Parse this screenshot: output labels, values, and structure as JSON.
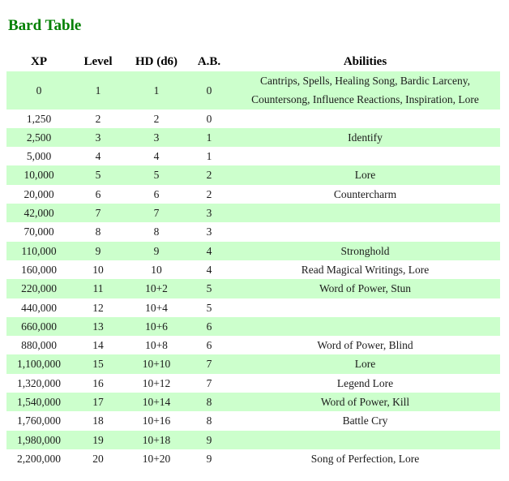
{
  "page": {
    "title": "Bard Table"
  },
  "colors": {
    "title_green": "#008000",
    "stripe_green": "#ccffcc",
    "text": "#1b1b1b"
  },
  "table": {
    "columns": [
      "XP",
      "Level",
      "HD (d6)",
      "A.B.",
      "Abilities"
    ],
    "rows": [
      {
        "xp": "0",
        "level": "1",
        "hd": "1",
        "ab": "0",
        "abilities": "Cantrips, Spells, Healing Song, Bardic Larceny, Countersong, Influence Reactions, Inspiration, Lore"
      },
      {
        "xp": "1,250",
        "level": "2",
        "hd": "2",
        "ab": "0",
        "abilities": ""
      },
      {
        "xp": "2,500",
        "level": "3",
        "hd": "3",
        "ab": "1",
        "abilities": "Identify"
      },
      {
        "xp": "5,000",
        "level": "4",
        "hd": "4",
        "ab": "1",
        "abilities": ""
      },
      {
        "xp": "10,000",
        "level": "5",
        "hd": "5",
        "ab": "2",
        "abilities": "Lore"
      },
      {
        "xp": "20,000",
        "level": "6",
        "hd": "6",
        "ab": "2",
        "abilities": "Countercharm"
      },
      {
        "xp": "42,000",
        "level": "7",
        "hd": "7",
        "ab": "3",
        "abilities": ""
      },
      {
        "xp": "70,000",
        "level": "8",
        "hd": "8",
        "ab": "3",
        "abilities": ""
      },
      {
        "xp": "110,000",
        "level": "9",
        "hd": "9",
        "ab": "4",
        "abilities": "Stronghold"
      },
      {
        "xp": "160,000",
        "level": "10",
        "hd": "10",
        "ab": "4",
        "abilities": "Read Magical Writings, Lore"
      },
      {
        "xp": "220,000",
        "level": "11",
        "hd": "10+2",
        "ab": "5",
        "abilities": "Word of Power, Stun"
      },
      {
        "xp": "440,000",
        "level": "12",
        "hd": "10+4",
        "ab": "5",
        "abilities": ""
      },
      {
        "xp": "660,000",
        "level": "13",
        "hd": "10+6",
        "ab": "6",
        "abilities": ""
      },
      {
        "xp": "880,000",
        "level": "14",
        "hd": "10+8",
        "ab": "6",
        "abilities": "Word of Power, Blind"
      },
      {
        "xp": "1,100,000",
        "level": "15",
        "hd": "10+10",
        "ab": "7",
        "abilities": "Lore"
      },
      {
        "xp": "1,320,000",
        "level": "16",
        "hd": "10+12",
        "ab": "7",
        "abilities": "Legend Lore"
      },
      {
        "xp": "1,540,000",
        "level": "17",
        "hd": "10+14",
        "ab": "8",
        "abilities": "Word of Power, Kill"
      },
      {
        "xp": "1,760,000",
        "level": "18",
        "hd": "10+16",
        "ab": "8",
        "abilities": "Battle Cry"
      },
      {
        "xp": "1,980,000",
        "level": "19",
        "hd": "10+18",
        "ab": "9",
        "abilities": ""
      },
      {
        "xp": "2,200,000",
        "level": "20",
        "hd": "10+20",
        "ab": "9",
        "abilities": "Song of Perfection, Lore"
      }
    ]
  }
}
